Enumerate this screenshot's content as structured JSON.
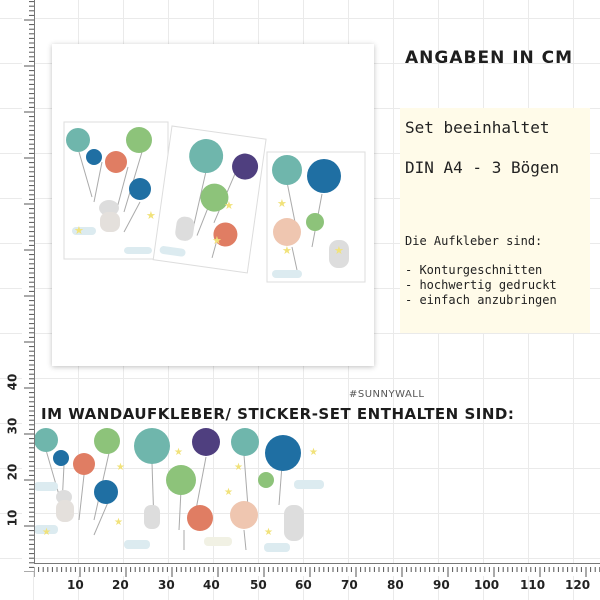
{
  "panel": {
    "title": "ANGABEN IN CM",
    "set_line": "Set beeinhaltet",
    "din_line": "DIN A4 - 3 Bögen",
    "aufkleber_title": "Die Aufkleber sind:",
    "bullets": [
      "- Konturgeschnitten",
      "- hochwertig gedruckt",
      "- einfach anzubringen"
    ]
  },
  "brand": "#SUNNYWALL",
  "section_heading": "IM WANDAUFKLEBER/ STICKER-SET ENTHALTEN SIND:",
  "ruler": {
    "x_labels": [
      "10",
      "20",
      "30",
      "40",
      "50",
      "60",
      "70",
      "80",
      "90",
      "100",
      "110",
      "120"
    ],
    "y_labels": [
      "40",
      "30",
      "20",
      "10"
    ]
  },
  "colors": {
    "teal": "#6fb6ac",
    "blue": "#1f6fa3",
    "orange": "#e07d63",
    "green": "#8dc37a",
    "purple": "#4f3f7f",
    "peach": "#efc6b0",
    "star": "#f1e27a"
  }
}
